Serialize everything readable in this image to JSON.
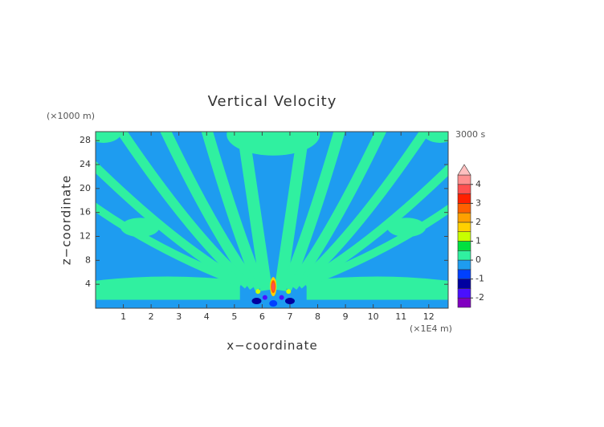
{
  "chart_data": {
    "type": "contour",
    "title": "Vertical Velocity",
    "x_label": "x−coordinate",
    "y_label": "z−coordinate",
    "x_unit": "(×1E4 m)",
    "y_unit": "(×1000 m)",
    "time_label": "3000 s",
    "xlim": [
      0,
      12.7
    ],
    "ylim": [
      0,
      29.5
    ],
    "xticks": [
      1,
      2,
      3,
      4,
      5,
      6,
      7,
      8,
      9,
      10,
      11,
      12
    ],
    "yticks": [
      4,
      8,
      12,
      16,
      20,
      24,
      28
    ],
    "levels": [
      -2.5,
      -2,
      -1.5,
      -1,
      -0.5,
      0,
      0.5,
      1,
      1.5,
      2,
      2.5,
      3,
      3.5,
      4,
      4.5
    ],
    "colors": [
      "#8000c0",
      "#4a10ff",
      "#0000a0",
      "#0040ff",
      "#1e9cf0",
      "#30f0a0",
      "#00e040",
      "#c8ff00",
      "#ffd000",
      "#ffa000",
      "#ff6000",
      "#ff2000",
      "#ff5050",
      "#ff9090"
    ],
    "over_color": "#ffc0c0",
    "colorbar_ticks": [
      -2,
      -1,
      0,
      1,
      2,
      3,
      4
    ]
  }
}
